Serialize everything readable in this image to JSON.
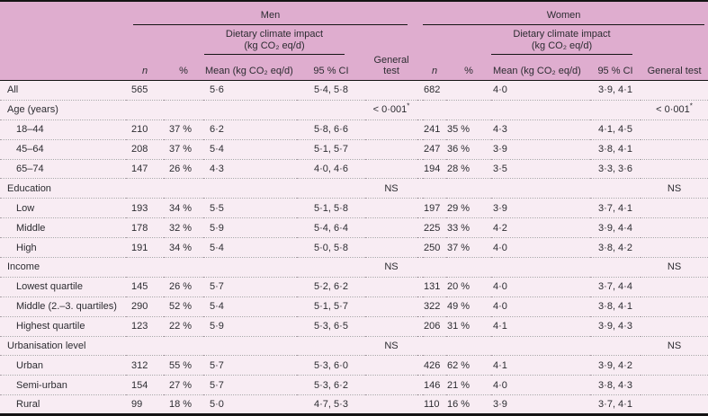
{
  "colors": {
    "header_bg": "#dfadcf",
    "body_bg": "#f8ecf3",
    "rule": "#141414",
    "dotted_divider": "#a89ea5",
    "text": "#2c2c31"
  },
  "header": {
    "groups": [
      {
        "label": "Men"
      },
      {
        "label": "Women"
      }
    ],
    "impact_line1": "Dietary climate impact",
    "impact_line2": "(kg CO₂ eq/d)",
    "columns": {
      "n": "n",
      "pct": "%",
      "mean": "Mean (kg CO₂ eq/d)",
      "ci": "95 % CI",
      "general_test": "General test"
    }
  },
  "rows": [
    {
      "label": "All",
      "category": false,
      "indent": false,
      "men": [
        "565",
        "",
        "5·6",
        "5·4, 5·8",
        ""
      ],
      "women": [
        "682",
        "",
        "4·0",
        "3·9, 4·1",
        ""
      ]
    },
    {
      "label": "Age (years)",
      "category": true,
      "indent": false,
      "men": [
        "",
        "",
        "",
        "",
        "< 0·001*"
      ],
      "women": [
        "",
        "",
        "",
        "",
        "< 0·001*"
      ]
    },
    {
      "label": "18–44",
      "category": false,
      "indent": true,
      "men": [
        "210",
        "37 %",
        "6·2",
        "5·8, 6·6",
        ""
      ],
      "women": [
        "241",
        "35 %",
        "4·3",
        "4·1, 4·5",
        ""
      ]
    },
    {
      "label": "45–64",
      "category": false,
      "indent": true,
      "men": [
        "208",
        "37 %",
        "5·4",
        "5·1, 5·7",
        ""
      ],
      "women": [
        "247",
        "36 %",
        "3·9",
        "3·8, 4·1",
        ""
      ]
    },
    {
      "label": "65–74",
      "category": false,
      "indent": true,
      "men": [
        "147",
        "26 %",
        "4·3",
        "4·0, 4·6",
        ""
      ],
      "women": [
        "194",
        "28 %",
        "3·5",
        "3·3, 3·6",
        ""
      ]
    },
    {
      "label": "Education",
      "category": true,
      "indent": false,
      "men": [
        "",
        "",
        "",
        "",
        "NS"
      ],
      "women": [
        "",
        "",
        "",
        "",
        "NS"
      ]
    },
    {
      "label": "Low",
      "category": false,
      "indent": true,
      "men": [
        "193",
        "34 %",
        "5·5",
        "5·1, 5·8",
        ""
      ],
      "women": [
        "197",
        "29 %",
        "3·9",
        "3·7, 4·1",
        ""
      ]
    },
    {
      "label": "Middle",
      "category": false,
      "indent": true,
      "men": [
        "178",
        "32 %",
        "5·9",
        "5·4, 6·4",
        ""
      ],
      "women": [
        "225",
        "33 %",
        "4·2",
        "3·9, 4·4",
        ""
      ]
    },
    {
      "label": "High",
      "category": false,
      "indent": true,
      "men": [
        "191",
        "34 %",
        "5·4",
        "5·0, 5·8",
        ""
      ],
      "women": [
        "250",
        "37 %",
        "4·0",
        "3·8, 4·2",
        ""
      ]
    },
    {
      "label": "Income",
      "category": true,
      "indent": false,
      "men": [
        "",
        "",
        "",
        "",
        "NS"
      ],
      "women": [
        "",
        "",
        "",
        "",
        "NS"
      ]
    },
    {
      "label": "Lowest quartile",
      "category": false,
      "indent": true,
      "men": [
        "145",
        "26 %",
        "5·7",
        "5·2, 6·2",
        ""
      ],
      "women": [
        "131",
        "20 %",
        "4·0",
        "3·7, 4·4",
        ""
      ]
    },
    {
      "label": "Middle (2.–3. quartiles)",
      "category": false,
      "indent": true,
      "men": [
        "290",
        "52 %",
        "5·4",
        "5·1, 5·7",
        ""
      ],
      "women": [
        "322",
        "49 %",
        "4·0",
        "3·8, 4·1",
        ""
      ]
    },
    {
      "label": "Highest quartile",
      "category": false,
      "indent": true,
      "men": [
        "123",
        "22 %",
        "5·9",
        "5·3, 6·5",
        ""
      ],
      "women": [
        "206",
        "31 %",
        "4·1",
        "3·9, 4·3",
        ""
      ]
    },
    {
      "label": "Urbanisation level",
      "category": true,
      "indent": false,
      "men": [
        "",
        "",
        "",
        "",
        "NS"
      ],
      "women": [
        "",
        "",
        "",
        "",
        "NS"
      ]
    },
    {
      "label": "Urban",
      "category": false,
      "indent": true,
      "men": [
        "312",
        "55 %",
        "5·7",
        "5·3, 6·0",
        ""
      ],
      "women": [
        "426",
        "62 %",
        "4·1",
        "3·9, 4·2",
        ""
      ]
    },
    {
      "label": "Semi-urban",
      "category": false,
      "indent": true,
      "men": [
        "154",
        "27 %",
        "5·7",
        "5·3, 6·2",
        ""
      ],
      "women": [
        "146",
        "21 %",
        "4·0",
        "3·8, 4·3",
        ""
      ]
    },
    {
      "label": "Rural",
      "category": false,
      "indent": true,
      "men": [
        "99",
        "18 %",
        "5·0",
        "4·7, 5·3",
        ""
      ],
      "women": [
        "110",
        "16 %",
        "3·9",
        "3·7, 4·1",
        ""
      ]
    }
  ]
}
